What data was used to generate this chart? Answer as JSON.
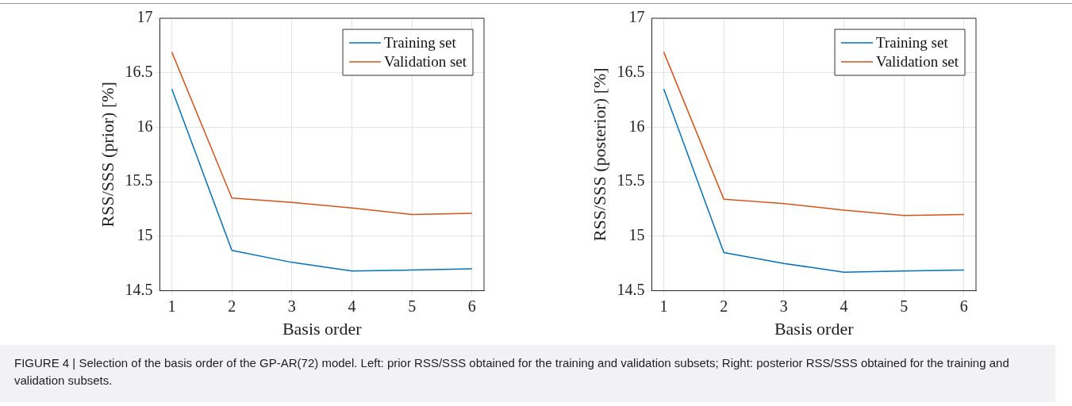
{
  "chart_data": [
    {
      "type": "line",
      "xlabel": "Basis order",
      "ylabel": "RSS/SSS (prior) [%]",
      "x": [
        1,
        2,
        3,
        4,
        5,
        6
      ],
      "xlim": [
        0.8,
        6.2
      ],
      "xticks": [
        1,
        2,
        3,
        4,
        5,
        6
      ],
      "ylim": [
        14.5,
        17
      ],
      "yticks": [
        14.5,
        15,
        15.5,
        16,
        16.5,
        17
      ],
      "grid": true,
      "legend": "top right",
      "line_style": "solid",
      "marker": "none",
      "series": [
        {
          "name": "Training set",
          "color": "#0072bd",
          "values": [
            16.35,
            14.87,
            14.76,
            14.68,
            14.69,
            14.7
          ]
        },
        {
          "name": "Validation set",
          "color": "#d95319",
          "values": [
            16.69,
            15.35,
            15.31,
            15.26,
            15.2,
            15.21
          ]
        }
      ],
      "annotations": [
        "FIGURE 4 | Selection of the basis order of the GP-AR(72) model. Left: prior RSS/SSS obtained for the training and validation subsets; Right: posterior RSS/SSS obtained for the training and validation subsets."
      ]
    },
    {
      "type": "line",
      "xlabel": "Basis order",
      "ylabel": "RSS/SSS (posterior) [%]",
      "x": [
        1,
        2,
        3,
        4,
        5,
        6
      ],
      "xlim": [
        0.8,
        6.2
      ],
      "xticks": [
        1,
        2,
        3,
        4,
        5,
        6
      ],
      "ylim": [
        14.5,
        17
      ],
      "yticks": [
        14.5,
        15,
        15.5,
        16,
        16.5,
        17
      ],
      "grid": true,
      "legend": "top right",
      "line_style": "solid",
      "marker": "none",
      "series": [
        {
          "name": "Training set",
          "color": "#0072bd",
          "values": [
            16.35,
            14.85,
            14.75,
            14.67,
            14.68,
            14.69
          ]
        },
        {
          "name": "Validation set",
          "color": "#d95319",
          "values": [
            16.69,
            15.34,
            15.3,
            15.24,
            15.19,
            15.2
          ]
        }
      ]
    }
  ]
}
